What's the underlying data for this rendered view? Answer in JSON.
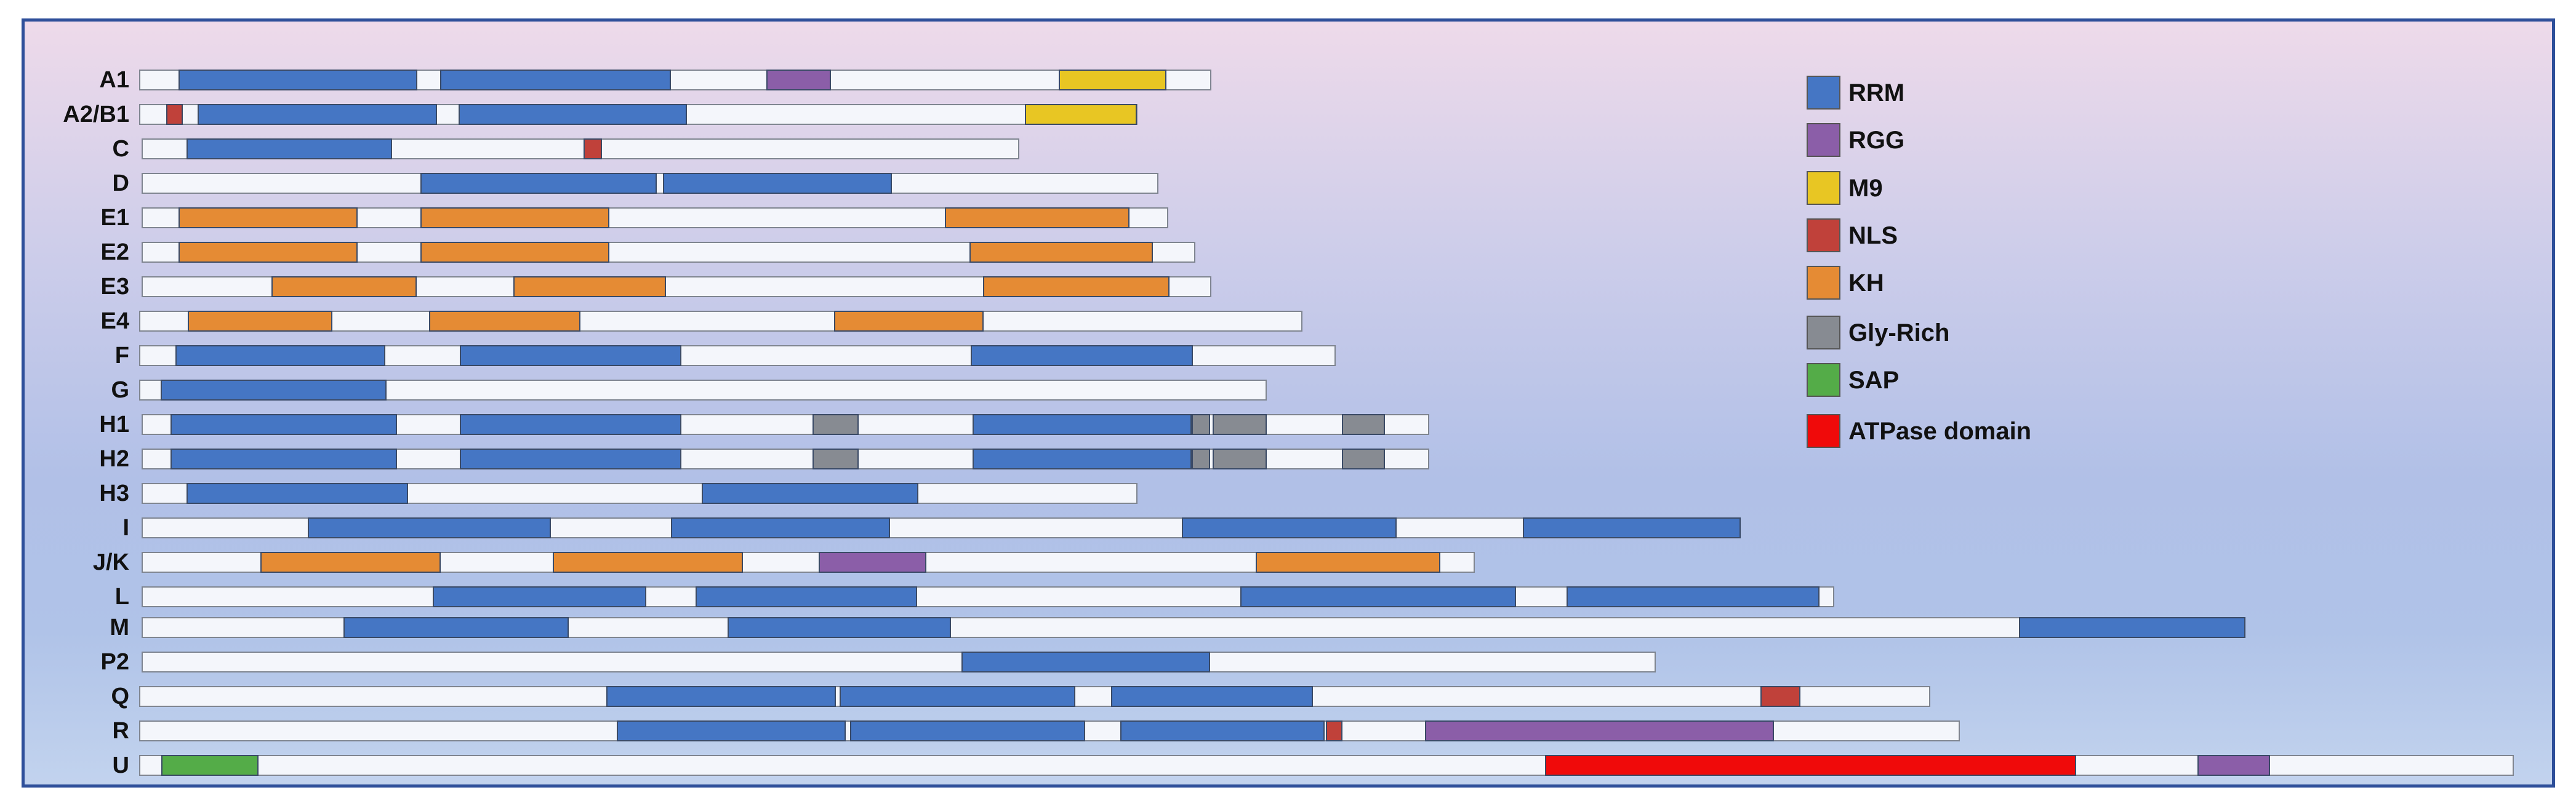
{
  "colors": {
    "RRM": "#4576c4",
    "RGG": "#8b5ea8",
    "M9": "#e8c623",
    "NLS": "#c0413a",
    "KH": "#e58b34",
    "Gly": "#878b92",
    "SAP": "#54ac48",
    "ATP": "#f00a0a"
  },
  "legend": [
    {
      "key": "RRM",
      "label": "RRM"
    },
    {
      "key": "RGG",
      "label": "RGG"
    },
    {
      "key": "M9",
      "label": "M9"
    },
    {
      "key": "NLS",
      "label": "NLS"
    },
    {
      "key": "KH",
      "label": "KH"
    },
    {
      "key": "Gly",
      "label": "Gly-Rich"
    },
    {
      "key": "SAP",
      "label": "SAP"
    },
    {
      "key": "ATP",
      "label": "ATPase domain"
    }
  ],
  "proteins": [
    {
      "name": "A1",
      "domains": [
        {
          "type": "RRM"
        },
        {
          "type": "RRM"
        },
        {
          "type": "RGG"
        },
        {
          "type": "M9"
        }
      ]
    },
    {
      "name": "A2/B1",
      "domains": [
        {
          "type": "NLS"
        },
        {
          "type": "RRM"
        },
        {
          "type": "RRM"
        },
        {
          "type": "M9"
        }
      ]
    },
    {
      "name": "C",
      "domains": [
        {
          "type": "RRM"
        },
        {
          "type": "NLS"
        }
      ]
    },
    {
      "name": "D",
      "domains": [
        {
          "type": "RRM"
        },
        {
          "type": "RRM"
        }
      ]
    },
    {
      "name": "E1",
      "domains": [
        {
          "type": "KH"
        },
        {
          "type": "KH"
        },
        {
          "type": "KH"
        }
      ]
    },
    {
      "name": "E2",
      "domains": [
        {
          "type": "KH"
        },
        {
          "type": "KH"
        },
        {
          "type": "KH"
        }
      ]
    },
    {
      "name": "E3",
      "domains": [
        {
          "type": "KH"
        },
        {
          "type": "KH"
        },
        {
          "type": "KH"
        }
      ]
    },
    {
      "name": "E4",
      "domains": [
        {
          "type": "KH"
        },
        {
          "type": "KH"
        },
        {
          "type": "KH"
        }
      ]
    },
    {
      "name": "F",
      "domains": [
        {
          "type": "RRM"
        },
        {
          "type": "RRM"
        },
        {
          "type": "RRM"
        }
      ]
    },
    {
      "name": "G",
      "domains": [
        {
          "type": "RRM"
        }
      ]
    },
    {
      "name": "H1",
      "domains": [
        {
          "type": "RRM"
        },
        {
          "type": "RRM"
        },
        {
          "type": "Gly"
        },
        {
          "type": "RRM"
        },
        {
          "type": "Gly"
        },
        {
          "type": "Gly"
        },
        {
          "type": "Gly"
        }
      ]
    },
    {
      "name": "H2",
      "domains": [
        {
          "type": "RRM"
        },
        {
          "type": "RRM"
        },
        {
          "type": "Gly"
        },
        {
          "type": "RRM"
        },
        {
          "type": "Gly"
        },
        {
          "type": "Gly"
        },
        {
          "type": "Gly"
        }
      ]
    },
    {
      "name": "H3",
      "domains": [
        {
          "type": "RRM"
        },
        {
          "type": "RRM"
        }
      ]
    },
    {
      "name": "I",
      "domains": [
        {
          "type": "RRM"
        },
        {
          "type": "RRM"
        },
        {
          "type": "RRM"
        },
        {
          "type": "RRM"
        }
      ]
    },
    {
      "name": "J/K",
      "domains": [
        {
          "type": "KH"
        },
        {
          "type": "KH"
        },
        {
          "type": "RGG"
        },
        {
          "type": "KH"
        }
      ]
    },
    {
      "name": "L",
      "domains": [
        {
          "type": "RRM"
        },
        {
          "type": "RRM"
        },
        {
          "type": "RRM"
        },
        {
          "type": "RRM"
        }
      ]
    },
    {
      "name": "M",
      "domains": [
        {
          "type": "RRM"
        },
        {
          "type": "RRM"
        },
        {
          "type": "RRM"
        }
      ]
    },
    {
      "name": "P2",
      "domains": [
        {
          "type": "RRM"
        }
      ]
    },
    {
      "name": "Q",
      "domains": [
        {
          "type": "RRM"
        },
        {
          "type": "RRM"
        },
        {
          "type": "RRM"
        },
        {
          "type": "NLS"
        }
      ]
    },
    {
      "name": "R",
      "domains": [
        {
          "type": "RRM"
        },
        {
          "type": "RRM"
        },
        {
          "type": "RRM"
        },
        {
          "type": "NLS"
        },
        {
          "type": "RGG"
        }
      ]
    },
    {
      "name": "U",
      "domains": [
        {
          "type": "SAP"
        },
        {
          "type": "ATP"
        },
        {
          "type": "RGG"
        }
      ]
    }
  ]
}
